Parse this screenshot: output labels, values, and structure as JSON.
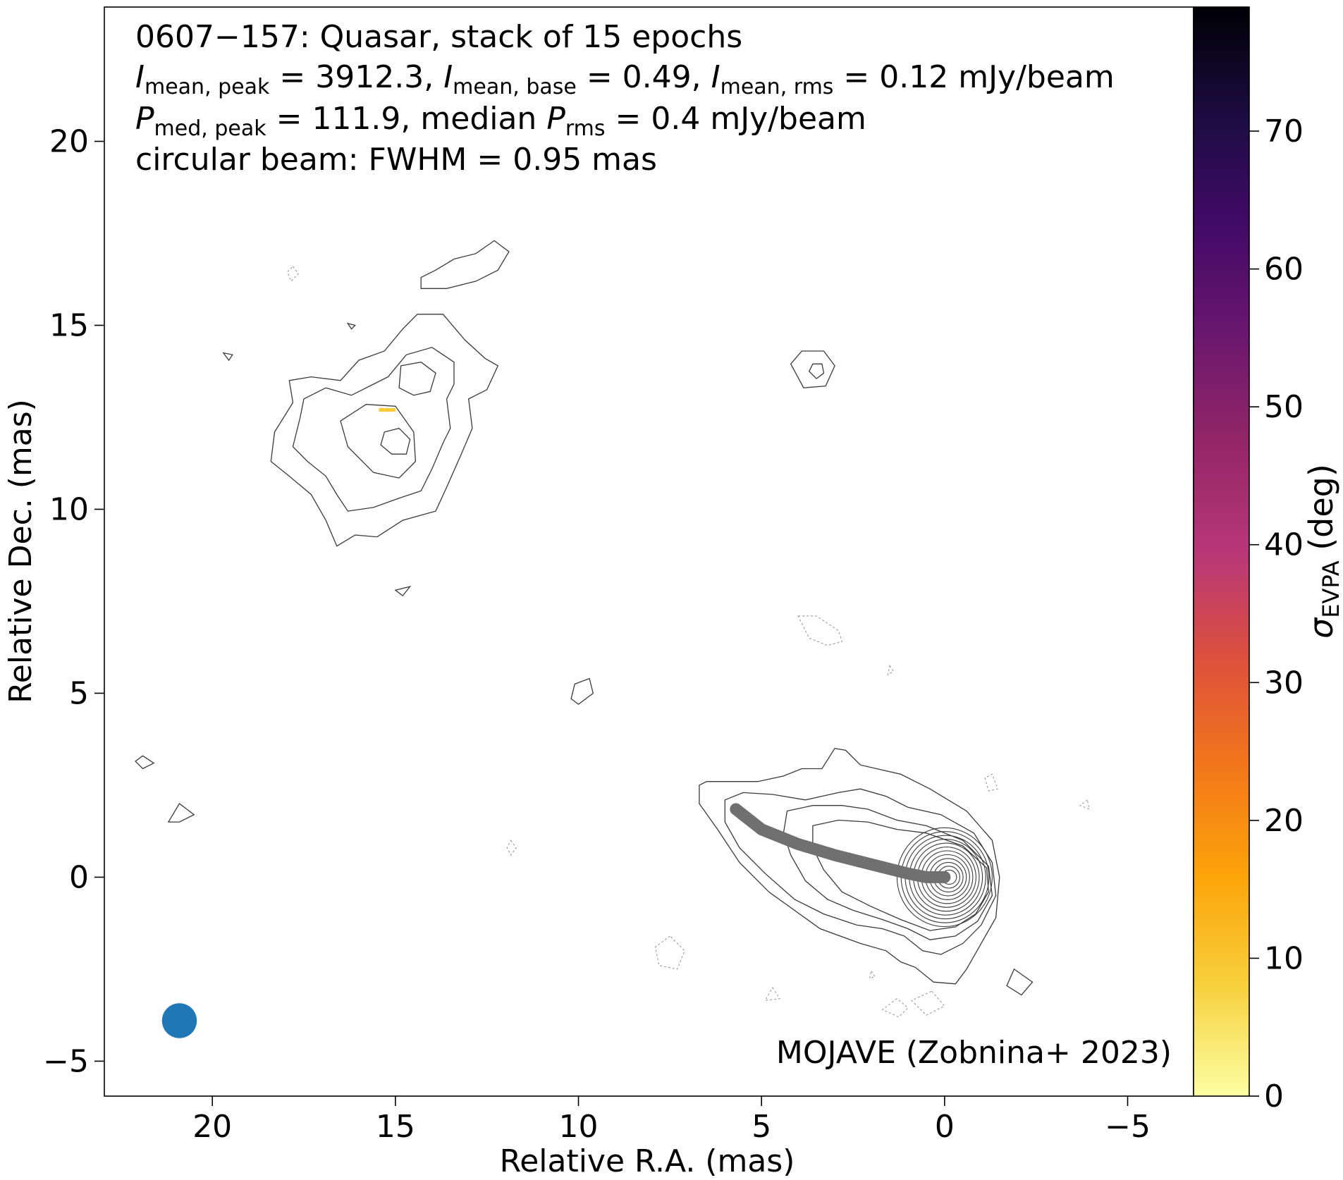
{
  "chart_data": {
    "type": "image",
    "annotations": {
      "line1": "0607−157: Quasar, stack of 15 epochs",
      "line2": {
        "i1": "I",
        "i1sub": "mean, peak",
        "i1val": " = 3912.3, ",
        "i2": "I",
        "i2sub": "mean, base",
        "i2val": " = 0.49, ",
        "i3": "I",
        "i3sub": "mean, rms",
        "i3val": " = 0.12 mJy/beam"
      },
      "line3": {
        "p1": "P",
        "p1sub": "med, peak",
        "p1val": " = 111.9, median ",
        "p2": "P",
        "p2sub": "rms",
        "p2val": " = 0.4 mJy/beam"
      },
      "line4": "circular beam: FWHM = 0.95 mas",
      "credit": "MOJAVE (Zobnina+ 2023)"
    },
    "x_axis": {
      "label": "Relative R.A. (mas)",
      "lim": [
        22.95,
        -6.8
      ],
      "ticks": [
        20,
        15,
        10,
        5,
        0,
        -5
      ],
      "tick_labels": [
        "20",
        "15",
        "10",
        "5",
        "0",
        "−5"
      ]
    },
    "y_axis": {
      "label": "Relative Dec. (mas)",
      "lim": [
        -5.95,
        23.65
      ],
      "ticks": [
        20,
        15,
        10,
        5,
        0,
        -5
      ],
      "tick_labels": [
        "20",
        "15",
        "10",
        "5",
        "0",
        "−5"
      ]
    },
    "colorbar": {
      "label_main": "σ",
      "label_sub": "EVPA",
      "label_tail": " (deg)",
      "range": [
        0,
        79
      ],
      "ticks": [
        0,
        10,
        20,
        30,
        40,
        50,
        60,
        70
      ],
      "tick_labels": [
        "0",
        "10",
        "20",
        "30",
        "40",
        "50",
        "60",
        "70"
      ],
      "colormap": "inferno_r",
      "stops": [
        "#fcffa4",
        "#f7d13d",
        "#fca50a",
        "#f37819",
        "#dd513a",
        "#b73779",
        "#932667",
        "#6a176e",
        "#420a68",
        "#1b0c41",
        "#000004"
      ]
    },
    "beam": {
      "x": 20.9,
      "y": -3.9,
      "fwhm_mas": 0.95,
      "color": "#1f77b4"
    },
    "jet_ridge_line": {
      "color": "#707070",
      "points": [
        [
          5.7,
          1.85
        ],
        [
          5.0,
          1.3
        ],
        [
          4.0,
          0.9
        ],
        [
          3.0,
          0.6
        ],
        [
          2.0,
          0.35
        ],
        [
          1.0,
          0.1
        ],
        [
          0.5,
          0.0
        ],
        [
          0.0,
          0.0
        ]
      ]
    },
    "core": {
      "x": 0,
      "y": 0
    },
    "contours": {
      "color": "#3a3a3a",
      "negative_color": "#9a9a9a",
      "core_levels": [
        [
          [
            0.0,
            0.0
          ],
          [
            1.3,
            0.55
          ]
        ],
        [
          [
            0.05,
            0.0
          ],
          [
            1.05,
            0.85
          ]
        ],
        [
          [
            0.1,
            0.0
          ],
          [
            0.82,
            1.1
          ]
        ],
        [
          [
            0.2,
            0.0
          ],
          [
            0.62,
            1.4
          ]
        ]
      ],
      "jet_outer": [
        [
          6.7,
          2.5
        ],
        [
          6.5,
          2.6
        ],
        [
          5.8,
          2.6
        ],
        [
          5.1,
          2.6
        ],
        [
          4.4,
          2.75
        ],
        [
          3.9,
          2.95
        ],
        [
          3.35,
          2.95
        ],
        [
          3.0,
          3.5
        ],
        [
          2.7,
          3.45
        ],
        [
          2.3,
          3.05
        ],
        [
          1.2,
          2.8
        ],
        [
          0.4,
          2.4
        ],
        [
          -0.6,
          1.8
        ],
        [
          -1.3,
          1.0
        ],
        [
          -1.5,
          0.0
        ],
        [
          -1.4,
          -1.1
        ],
        [
          -1.0,
          -1.8
        ],
        [
          -0.6,
          -2.5
        ],
        [
          -0.3,
          -2.9
        ],
        [
          0.3,
          -2.85
        ],
        [
          0.8,
          -2.45
        ],
        [
          1.2,
          -2.3
        ],
        [
          1.6,
          -2.0
        ],
        [
          2.3,
          -1.8
        ],
        [
          3.4,
          -1.4
        ],
        [
          4.1,
          -0.9
        ],
        [
          4.8,
          -0.4
        ],
        [
          5.6,
          0.4
        ],
        [
          6.2,
          1.3
        ],
        [
          6.7,
          2.0
        ],
        [
          6.7,
          2.5
        ]
      ],
      "jet_second": [
        [
          6.0,
          2.1
        ],
        [
          5.5,
          2.3
        ],
        [
          4.7,
          2.25
        ],
        [
          3.8,
          2.1
        ],
        [
          2.9,
          2.3
        ],
        [
          2.3,
          2.4
        ],
        [
          1.6,
          2.2
        ],
        [
          1.0,
          1.9
        ],
        [
          0.1,
          1.7
        ],
        [
          -0.8,
          1.2
        ],
        [
          -1.3,
          0.4
        ],
        [
          -1.4,
          -0.5
        ],
        [
          -1.0,
          -1.3
        ],
        [
          -0.5,
          -1.8
        ],
        [
          0.1,
          -2.1
        ],
        [
          0.6,
          -2.0
        ],
        [
          1.1,
          -1.6
        ],
        [
          1.7,
          -1.4
        ],
        [
          2.4,
          -1.3
        ],
        [
          3.3,
          -1.0
        ],
        [
          4.1,
          -0.6
        ],
        [
          4.9,
          0.1
        ],
        [
          5.6,
          0.8
        ],
        [
          6.0,
          1.5
        ],
        [
          6.0,
          2.1
        ]
      ],
      "jet_third": [
        [
          4.3,
          1.8
        ],
        [
          3.6,
          1.95
        ],
        [
          2.8,
          1.95
        ],
        [
          2.1,
          1.85
        ],
        [
          1.3,
          1.55
        ],
        [
          0.5,
          1.4
        ],
        [
          -0.5,
          1.0
        ],
        [
          -1.2,
          0.3
        ],
        [
          -1.3,
          -0.5
        ],
        [
          -0.9,
          -1.2
        ],
        [
          -0.3,
          -1.6
        ],
        [
          0.4,
          -1.7
        ],
        [
          1.0,
          -1.4
        ],
        [
          1.7,
          -1.15
        ],
        [
          2.5,
          -0.9
        ],
        [
          3.2,
          -0.6
        ],
        [
          3.8,
          -0.1
        ],
        [
          4.2,
          0.6
        ],
        [
          4.4,
          1.2
        ],
        [
          4.3,
          1.8
        ]
      ],
      "jet_fourth": [
        [
          3.6,
          1.4
        ],
        [
          2.9,
          1.55
        ],
        [
          2.1,
          1.5
        ],
        [
          1.3,
          1.3
        ],
        [
          0.5,
          1.2
        ],
        [
          -0.5,
          0.85
        ],
        [
          -1.15,
          0.25
        ],
        [
          -1.2,
          -0.4
        ],
        [
          -0.85,
          -1.0
        ],
        [
          -0.3,
          -1.35
        ],
        [
          0.4,
          -1.45
        ],
        [
          1.2,
          -1.15
        ],
        [
          2.0,
          -0.8
        ],
        [
          2.8,
          -0.4
        ],
        [
          3.3,
          0.2
        ],
        [
          3.6,
          0.8
        ],
        [
          3.6,
          1.4
        ]
      ],
      "blob_outer": [
        [
          16.6,
          9.0
        ],
        [
          16.1,
          9.3
        ],
        [
          15.5,
          9.25
        ],
        [
          14.8,
          9.7
        ],
        [
          13.9,
          9.95
        ],
        [
          13.6,
          10.6
        ],
        [
          13.2,
          11.5
        ],
        [
          12.9,
          12.2
        ],
        [
          13.0,
          13.0
        ],
        [
          12.5,
          13.25
        ],
        [
          12.2,
          13.9
        ],
        [
          12.55,
          14.1
        ],
        [
          13.1,
          14.6
        ],
        [
          13.7,
          15.3
        ],
        [
          14.4,
          15.3
        ],
        [
          14.8,
          14.9
        ],
        [
          15.3,
          14.3
        ],
        [
          16.0,
          14.05
        ],
        [
          16.5,
          13.5
        ],
        [
          17.3,
          13.6
        ],
        [
          17.9,
          13.5
        ],
        [
          17.8,
          12.9
        ],
        [
          18.3,
          12.1
        ],
        [
          18.4,
          11.3
        ],
        [
          17.9,
          10.9
        ],
        [
          17.3,
          10.4
        ],
        [
          16.9,
          9.7
        ],
        [
          16.6,
          9.0
        ]
      ],
      "blob_inner": [
        [
          16.3,
          9.95
        ],
        [
          15.6,
          10.05
        ],
        [
          14.9,
          10.3
        ],
        [
          14.3,
          10.5
        ],
        [
          14.0,
          11.1
        ],
        [
          13.7,
          11.8
        ],
        [
          13.5,
          12.2
        ],
        [
          13.6,
          13.0
        ],
        [
          13.4,
          13.4
        ],
        [
          13.4,
          14.0
        ],
        [
          14.0,
          14.4
        ],
        [
          14.7,
          14.2
        ],
        [
          15.2,
          13.6
        ],
        [
          15.6,
          13.4
        ],
        [
          16.2,
          13.1
        ],
        [
          16.9,
          13.3
        ],
        [
          17.5,
          13.0
        ],
        [
          17.6,
          12.5
        ],
        [
          17.8,
          11.7
        ],
        [
          17.4,
          11.3
        ],
        [
          16.9,
          10.9
        ],
        [
          16.6,
          10.4
        ],
        [
          16.3,
          9.95
        ]
      ],
      "blob_inner_hole": [
        [
          16.3,
          11.7
        ],
        [
          15.6,
          11.0
        ],
        [
          14.9,
          10.85
        ],
        [
          14.45,
          11.3
        ],
        [
          14.5,
          12.1
        ],
        [
          15.0,
          12.8
        ],
        [
          15.8,
          12.85
        ],
        [
          16.5,
          12.4
        ],
        [
          16.3,
          11.7
        ]
      ],
      "blob_core1": [
        [
          15.4,
          11.75
        ],
        [
          15.1,
          11.5
        ],
        [
          14.7,
          11.5
        ],
        [
          14.6,
          11.9
        ],
        [
          14.9,
          12.2
        ],
        [
          15.3,
          12.1
        ],
        [
          15.4,
          11.75
        ]
      ],
      "blob_core2": [
        [
          14.9,
          13.3
        ],
        [
          14.5,
          13.1
        ],
        [
          14.05,
          13.2
        ],
        [
          13.9,
          13.7
        ],
        [
          14.3,
          14.0
        ],
        [
          14.85,
          13.9
        ],
        [
          14.9,
          13.3
        ]
      ],
      "top_blob": [
        [
          14.3,
          16.3
        ],
        [
          13.9,
          16.5
        ],
        [
          13.4,
          16.8
        ],
        [
          12.8,
          16.95
        ],
        [
          12.3,
          17.3
        ],
        [
          11.9,
          17.0
        ],
        [
          12.2,
          16.5
        ],
        [
          12.8,
          16.2
        ],
        [
          13.6,
          16.0
        ],
        [
          14.3,
          16.0
        ],
        [
          14.3,
          16.3
        ]
      ],
      "mid_ring": [
        [
          3.9,
          14.3
        ],
        [
          4.2,
          13.95
        ],
        [
          3.85,
          13.3
        ],
        [
          3.25,
          13.35
        ],
        [
          3.0,
          13.9
        ],
        [
          3.3,
          14.3
        ],
        [
          3.9,
          14.3
        ]
      ],
      "mid_ring_inner": [
        [
          3.6,
          13.95
        ],
        [
          3.7,
          13.75
        ],
        [
          3.5,
          13.55
        ],
        [
          3.3,
          13.7
        ],
        [
          3.35,
          13.95
        ],
        [
          3.6,
          13.95
        ]
      ],
      "small_pos": [
        [
          [
            10.0,
            4.7
          ],
          [
            9.6,
            5.0
          ],
          [
            9.7,
            5.4
          ],
          [
            10.1,
            5.25
          ],
          [
            10.2,
            4.85
          ],
          [
            10.0,
            4.7
          ]
        ],
        [
          [
            21.9,
            3.3
          ],
          [
            21.6,
            3.1
          ],
          [
            21.9,
            2.95
          ],
          [
            22.1,
            3.15
          ],
          [
            21.9,
            3.3
          ]
        ],
        [
          [
            20.9,
            1.5
          ],
          [
            20.5,
            1.7
          ],
          [
            20.9,
            2.0
          ],
          [
            21.2,
            1.5
          ],
          [
            20.9,
            1.5
          ]
        ],
        [
          [
            -1.9,
            -2.5
          ],
          [
            -2.4,
            -2.85
          ],
          [
            -2.1,
            -3.2
          ],
          [
            -1.7,
            -2.95
          ],
          [
            -1.9,
            -2.5
          ]
        ],
        [
          [
            15.0,
            7.8
          ],
          [
            14.6,
            7.9
          ],
          [
            14.8,
            7.65
          ],
          [
            15.0,
            7.8
          ]
        ],
        [
          [
            19.7,
            14.25
          ],
          [
            19.45,
            14.2
          ],
          [
            19.55,
            14.05
          ],
          [
            19.7,
            14.25
          ]
        ],
        [
          [
            16.3,
            15.05
          ],
          [
            16.1,
            15.0
          ],
          [
            16.2,
            14.9
          ],
          [
            16.3,
            15.05
          ]
        ]
      ],
      "small_neg": [
        [
          [
            4.0,
            7.1
          ],
          [
            3.5,
            7.1
          ],
          [
            2.9,
            6.7
          ],
          [
            2.8,
            6.4
          ],
          [
            3.2,
            6.3
          ],
          [
            3.7,
            6.5
          ],
          [
            4.0,
            7.1
          ]
        ],
        [
          [
            7.5,
            -1.6
          ],
          [
            7.9,
            -1.9
          ],
          [
            7.8,
            -2.4
          ],
          [
            7.3,
            -2.5
          ],
          [
            7.1,
            -2.0
          ],
          [
            7.5,
            -1.6
          ]
        ],
        [
          [
            0.35,
            -3.1
          ],
          [
            0.0,
            -3.5
          ],
          [
            0.5,
            -3.75
          ],
          [
            0.9,
            -3.35
          ],
          [
            0.35,
            -3.1
          ]
        ],
        [
          [
            1.3,
            -3.3
          ],
          [
            1.7,
            -3.6
          ],
          [
            1.25,
            -3.8
          ],
          [
            1.0,
            -3.55
          ],
          [
            1.3,
            -3.3
          ]
        ],
        [
          [
            -1.1,
            2.7
          ],
          [
            -1.2,
            2.35
          ],
          [
            -1.45,
            2.4
          ],
          [
            -1.3,
            2.8
          ],
          [
            -1.1,
            2.7
          ]
        ],
        [
          [
            17.8,
            16.6
          ],
          [
            17.65,
            16.4
          ],
          [
            17.85,
            16.2
          ],
          [
            17.95,
            16.45
          ],
          [
            17.8,
            16.6
          ]
        ],
        [
          [
            11.85,
            1.0
          ],
          [
            11.7,
            0.8
          ],
          [
            11.85,
            0.6
          ],
          [
            11.95,
            0.8
          ],
          [
            11.85,
            1.0
          ]
        ],
        [
          [
            4.7,
            -3.0
          ],
          [
            4.5,
            -3.3
          ],
          [
            4.9,
            -3.35
          ],
          [
            4.7,
            -3.0
          ]
        ],
        [
          [
            -3.9,
            2.1
          ],
          [
            -3.7,
            1.95
          ],
          [
            -3.95,
            1.85
          ],
          [
            -3.9,
            2.1
          ]
        ],
        [
          [
            2.0,
            -2.55
          ],
          [
            1.9,
            -2.7
          ],
          [
            2.05,
            -2.75
          ],
          [
            2.0,
            -2.55
          ]
        ],
        [
          [
            1.5,
            5.75
          ],
          [
            1.4,
            5.6
          ],
          [
            1.55,
            5.5
          ],
          [
            1.5,
            5.75
          ]
        ]
      ]
    }
  }
}
